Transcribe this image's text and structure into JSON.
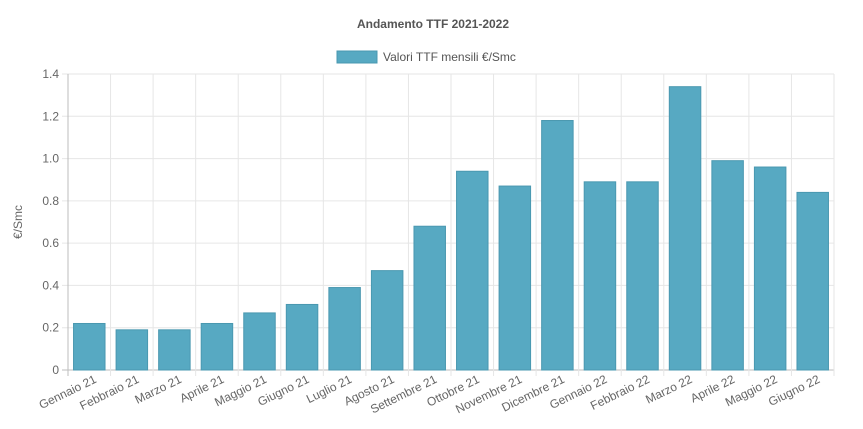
{
  "chart_data": {
    "type": "bar",
    "title": "Andamento TTF 2021-2022",
    "ylabel": "€/Smc",
    "xlabel": "",
    "ylim": [
      0,
      1.4
    ],
    "yticks": [
      "0",
      "0.2",
      "0.4",
      "0.6",
      "0.8",
      "1.0",
      "1.2",
      "1.4"
    ],
    "grid": true,
    "legend_position": "top-center",
    "bar_color": "#57a9c2",
    "categories": [
      "Gennaio 21",
      "Febbraio 21",
      "Marzo 21",
      "Aprile 21",
      "Maggio 21",
      "Giugno 21",
      "Luglio 21",
      "Agosto 21",
      "Settembre 21",
      "Ottobre 21",
      "Novembre 21",
      "Dicembre 21",
      "Gennaio 22",
      "Febbraio 22",
      "Marzo 22",
      "Aprile 22",
      "Maggio 22",
      "Giugno 22"
    ],
    "series": [
      {
        "name": "Valori TTF mensili €/Smc",
        "values": [
          0.22,
          0.19,
          0.19,
          0.22,
          0.27,
          0.31,
          0.39,
          0.47,
          0.68,
          0.94,
          0.87,
          1.18,
          0.89,
          0.89,
          1.34,
          0.99,
          0.96,
          0.84
        ]
      }
    ]
  }
}
